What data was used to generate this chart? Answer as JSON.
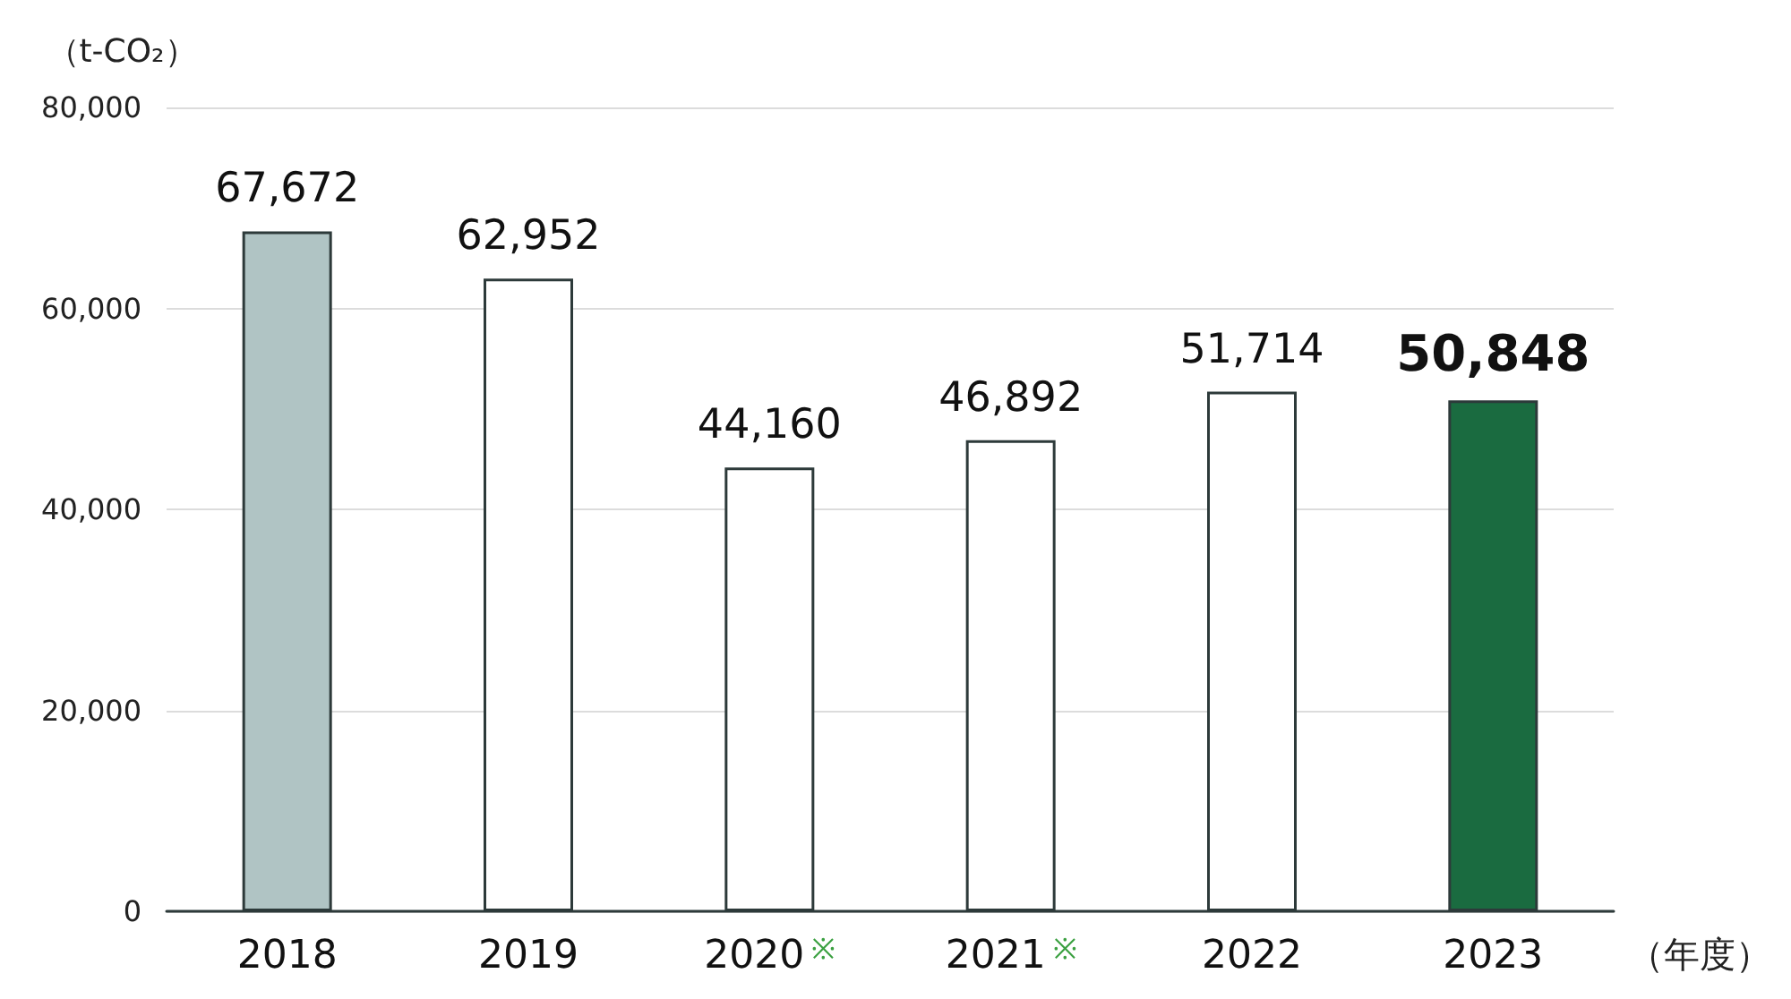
{
  "chart_data": {
    "type": "bar",
    "ylabel": "（t-CO₂）",
    "xlabel": "（年度）",
    "categories": [
      "2018",
      "2019",
      "2020※",
      "2021※",
      "2022",
      "2023"
    ],
    "values": [
      67672,
      62952,
      44160,
      46892,
      51714,
      50848
    ],
    "value_labels": [
      "67,672",
      "62,952",
      "44,160",
      "46,892",
      "51,714",
      "50,848"
    ],
    "colors": [
      "#b0c4c4",
      "#ffffff",
      "#ffffff",
      "#ffffff",
      "#ffffff",
      "#1a6b40"
    ],
    "ylim": [
      0,
      80000
    ],
    "yticks": [
      0,
      {
        "value": 20000,
        "label": "20,000"
      },
      {
        "value": 40000,
        "label": "40,000"
      },
      {
        "value": 60000,
        "label": "60,000"
      },
      {
        "value": 80000,
        "label": "80,000"
      }
    ],
    "grid": "y"
  }
}
